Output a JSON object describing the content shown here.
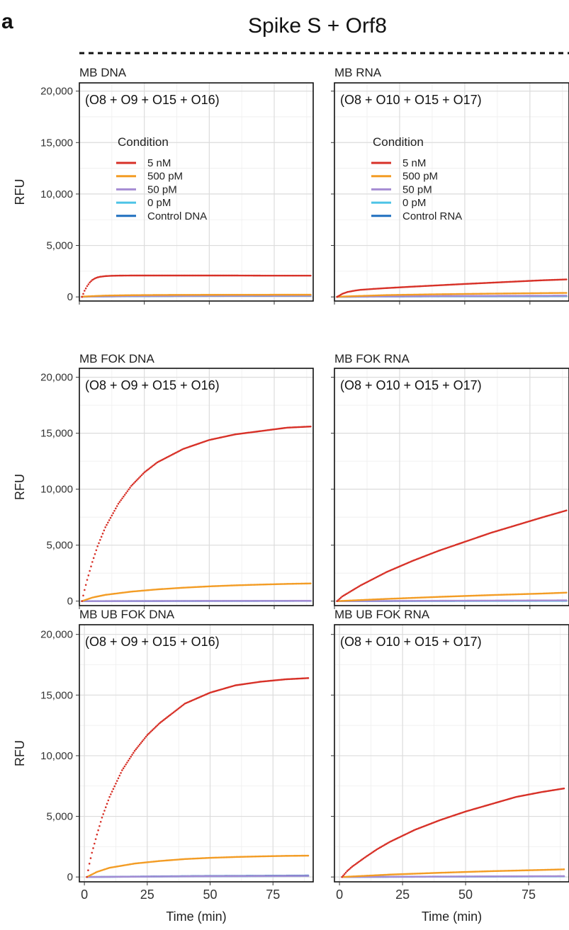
{
  "figure": {
    "panel_letter": "a",
    "title": "Spike S + Orf8",
    "legend_title": "Condition"
  },
  "colors": {
    "5 nM": "#d73027",
    "500 pM": "#f39c24",
    "50 pM": "#a58bd3",
    "0 pM": "#4cc3e6",
    "control": "#1f6fbf"
  },
  "chart_data": [
    {
      "type": "scatter",
      "title": "MB DNA",
      "annotation": "(O8 + O9 + O15 + O16)",
      "xlabel": "",
      "ylabel": "RFU",
      "xlim": [
        0,
        90
      ],
      "ylim": [
        -400,
        20800
      ],
      "yticks": [
        0,
        5000,
        10000,
        15000,
        20000
      ],
      "ytick_labels": [
        "0",
        "5,000",
        "10,000",
        "15,000",
        "20,000"
      ],
      "xticks": [
        0,
        25,
        50,
        75
      ],
      "xtick_labels": [],
      "grid": true,
      "legend": {
        "position": "upper-left",
        "labels": [
          "5 nM",
          "500 pM",
          "50 pM",
          "0 pM",
          "Control DNA"
        ]
      },
      "series": [
        {
          "name": "5 nM",
          "x": [
            1,
            2,
            3,
            4,
            5,
            6,
            7,
            8,
            10,
            12,
            15,
            20,
            25,
            30,
            40,
            50,
            60,
            70,
            80,
            89
          ],
          "y": [
            0,
            600,
            1050,
            1400,
            1650,
            1800,
            1900,
            1960,
            2020,
            2050,
            2070,
            2080,
            2080,
            2080,
            2080,
            2080,
            2080,
            2070,
            2070,
            2070
          ]
        },
        {
          "name": "500 pM",
          "x": [
            1,
            10,
            20,
            30,
            40,
            50,
            60,
            70,
            80,
            89
          ],
          "y": [
            30,
            130,
            170,
            190,
            200,
            205,
            210,
            210,
            215,
            215
          ]
        },
        {
          "name": "50 pM",
          "x": [
            1,
            20,
            40,
            60,
            80,
            89
          ],
          "y": [
            20,
            90,
            110,
            120,
            125,
            125
          ]
        },
        {
          "name": "0 pM",
          "x": [
            1,
            20,
            40,
            60,
            80,
            89
          ],
          "y": [
            20,
            80,
            100,
            110,
            115,
            115
          ]
        },
        {
          "name": "Control DNA",
          "x": [
            1,
            20,
            40,
            60,
            80,
            89
          ],
          "y": [
            20,
            70,
            90,
            100,
            105,
            105
          ]
        }
      ]
    },
    {
      "type": "scatter",
      "title": "MB RNA",
      "annotation": "(O8 + O10 + O15 + O17)",
      "xlabel": "",
      "ylabel": "",
      "xlim": [
        0,
        90
      ],
      "ylim": [
        -400,
        20800
      ],
      "yticks": [
        0,
        5000,
        10000,
        15000,
        20000
      ],
      "ytick_labels": [],
      "xticks": [
        0,
        25,
        50,
        75
      ],
      "xtick_labels": [],
      "grid": true,
      "legend": {
        "position": "upper-left",
        "labels": [
          "5 nM",
          "500 pM",
          "50 pM",
          "0 pM",
          "Control RNA"
        ]
      },
      "series": [
        {
          "name": "5 nM",
          "x": [
            1,
            3,
            5,
            8,
            10,
            15,
            20,
            30,
            40,
            50,
            60,
            70,
            80,
            89
          ],
          "y": [
            0,
            300,
            480,
            620,
            690,
            780,
            860,
            1000,
            1130,
            1260,
            1380,
            1500,
            1620,
            1700
          ]
        },
        {
          "name": "500 pM",
          "x": [
            1,
            20,
            40,
            60,
            80,
            89
          ],
          "y": [
            20,
            180,
            260,
            320,
            370,
            390
          ]
        },
        {
          "name": "50 pM",
          "x": [
            1,
            40,
            89
          ],
          "y": [
            10,
            90,
            130
          ]
        },
        {
          "name": "0 pM",
          "x": [
            1,
            40,
            89
          ],
          "y": [
            10,
            70,
            100
          ]
        },
        {
          "name": "Control RNA",
          "x": [
            1,
            40,
            89
          ],
          "y": [
            10,
            60,
            80
          ]
        }
      ]
    },
    {
      "type": "scatter",
      "title": "MB FOK DNA",
      "annotation": "(O8 + O9 + O15 + O16)",
      "xlabel": "",
      "ylabel": "RFU",
      "xlim": [
        0,
        90
      ],
      "ylim": [
        -400,
        20800
      ],
      "yticks": [
        0,
        5000,
        10000,
        15000,
        20000
      ],
      "ytick_labels": [
        "0",
        "5,000",
        "10,000",
        "15,000",
        "20,000"
      ],
      "xticks": [
        0,
        25,
        50,
        75
      ],
      "xtick_labels": [],
      "grid": true,
      "legend": null,
      "series": [
        {
          "name": "5 nM",
          "x": [
            1,
            2,
            3,
            5,
            7,
            10,
            15,
            20,
            25,
            30,
            40,
            50,
            60,
            70,
            80,
            89
          ],
          "y": [
            0,
            1000,
            1900,
            3500,
            4900,
            6600,
            8700,
            10300,
            11500,
            12400,
            13600,
            14400,
            14900,
            15200,
            15500,
            15600
          ]
        },
        {
          "name": "500 pM",
          "x": [
            1,
            5,
            10,
            20,
            30,
            40,
            50,
            60,
            70,
            80,
            89
          ],
          "y": [
            0,
            320,
            560,
            850,
            1050,
            1200,
            1320,
            1410,
            1480,
            1540,
            1580
          ]
        },
        {
          "name": "50 pM",
          "x": [
            1,
            45,
            89
          ],
          "y": [
            0,
            20,
            30
          ]
        },
        {
          "name": "0 pM",
          "x": [
            1,
            45,
            89
          ],
          "y": [
            0,
            15,
            25
          ]
        },
        {
          "name": "Control DNA",
          "x": [
            1,
            45,
            89
          ],
          "y": [
            0,
            10,
            20
          ]
        }
      ]
    },
    {
      "type": "scatter",
      "title": "MB FOK RNA",
      "annotation": "(O8 + O10 + O15 + O17)",
      "xlabel": "",
      "ylabel": "",
      "xlim": [
        0,
        90
      ],
      "ylim": [
        -400,
        20800
      ],
      "yticks": [
        0,
        5000,
        10000,
        15000,
        20000
      ],
      "ytick_labels": [],
      "xticks": [
        0,
        25,
        50,
        75
      ],
      "xtick_labels": [],
      "grid": true,
      "legend": null,
      "series": [
        {
          "name": "5 nM",
          "x": [
            1,
            3,
            5,
            10,
            15,
            20,
            25,
            30,
            40,
            50,
            60,
            70,
            80,
            89
          ],
          "y": [
            0,
            420,
            700,
            1400,
            2000,
            2600,
            3100,
            3600,
            4500,
            5300,
            6100,
            6800,
            7500,
            8100
          ]
        },
        {
          "name": "500 pM",
          "x": [
            1,
            20,
            40,
            60,
            80,
            89
          ],
          "y": [
            0,
            200,
            380,
            540,
            680,
            760
          ]
        },
        {
          "name": "50 pM",
          "x": [
            1,
            45,
            89
          ],
          "y": [
            0,
            40,
            70
          ]
        },
        {
          "name": "0 pM",
          "x": [
            1,
            45,
            89
          ],
          "y": [
            0,
            20,
            40
          ]
        },
        {
          "name": "Control RNA",
          "x": [
            1,
            45,
            89
          ],
          "y": [
            0,
            15,
            30
          ]
        }
      ]
    },
    {
      "type": "scatter",
      "title": "MB UB FOK DNA",
      "annotation": "(O8 + O9 + O15 + O16)",
      "xlabel": "Time (min)",
      "ylabel": "RFU",
      "xlim": [
        -2,
        91
      ],
      "ylim": [
        -400,
        20800
      ],
      "yticks": [
        0,
        5000,
        10000,
        15000,
        20000
      ],
      "ytick_labels": [
        "0",
        "5,000",
        "10,000",
        "15,000",
        "20,000"
      ],
      "xticks": [
        0,
        25,
        50,
        75
      ],
      "xtick_labels": [
        "0",
        "25",
        "50",
        "75"
      ],
      "grid": true,
      "legend": null,
      "series": [
        {
          "name": "5 nM",
          "x": [
            1,
            2,
            3,
            5,
            7,
            10,
            15,
            20,
            25,
            30,
            40,
            50,
            60,
            70,
            80,
            89
          ],
          "y": [
            0,
            1100,
            2000,
            3500,
            4900,
            6600,
            8800,
            10400,
            11700,
            12700,
            14300,
            15200,
            15800,
            16100,
            16300,
            16400
          ]
        },
        {
          "name": "500 pM",
          "x": [
            1,
            5,
            10,
            20,
            30,
            40,
            50,
            60,
            70,
            80,
            89
          ],
          "y": [
            0,
            420,
            760,
            1110,
            1320,
            1480,
            1580,
            1650,
            1700,
            1740,
            1760
          ]
        },
        {
          "name": "50 pM",
          "x": [
            1,
            45,
            89
          ],
          "y": [
            0,
            60,
            90
          ]
        },
        {
          "name": "0 pM",
          "x": [
            1,
            45,
            89
          ],
          "y": [
            0,
            50,
            80
          ]
        },
        {
          "name": "Control DNA",
          "x": [
            1,
            45,
            89
          ],
          "y": [
            0,
            80,
            120
          ]
        }
      ]
    },
    {
      "type": "scatter",
      "title": "MB UB FOK RNA",
      "annotation": "(O8 + O10 + O15 + O17)",
      "xlabel": "Time (min)",
      "ylabel": "",
      "xlim": [
        -2,
        91
      ],
      "ylim": [
        -400,
        20800
      ],
      "yticks": [
        0,
        5000,
        10000,
        15000,
        20000
      ],
      "ytick_labels": [],
      "xticks": [
        0,
        25,
        50,
        75
      ],
      "xtick_labels": [
        "0",
        "25",
        "50",
        "75"
      ],
      "grid": true,
      "legend": null,
      "series": [
        {
          "name": "5 nM",
          "x": [
            1,
            3,
            5,
            10,
            15,
            20,
            25,
            30,
            40,
            50,
            60,
            70,
            80,
            89
          ],
          "y": [
            0,
            480,
            850,
            1600,
            2300,
            2900,
            3400,
            3900,
            4700,
            5400,
            6000,
            6600,
            7000,
            7300
          ]
        },
        {
          "name": "500 pM",
          "x": [
            1,
            20,
            40,
            60,
            80,
            89
          ],
          "y": [
            0,
            200,
            350,
            480,
            580,
            630
          ]
        },
        {
          "name": "50 pM",
          "x": [
            1,
            45,
            89
          ],
          "y": [
            0,
            40,
            70
          ]
        },
        {
          "name": "0 pM",
          "x": [
            1,
            45,
            89
          ],
          "y": [
            0,
            30,
            50
          ]
        },
        {
          "name": "Control RNA",
          "x": [
            1,
            45,
            89
          ],
          "y": [
            0,
            30,
            60
          ]
        }
      ]
    }
  ]
}
